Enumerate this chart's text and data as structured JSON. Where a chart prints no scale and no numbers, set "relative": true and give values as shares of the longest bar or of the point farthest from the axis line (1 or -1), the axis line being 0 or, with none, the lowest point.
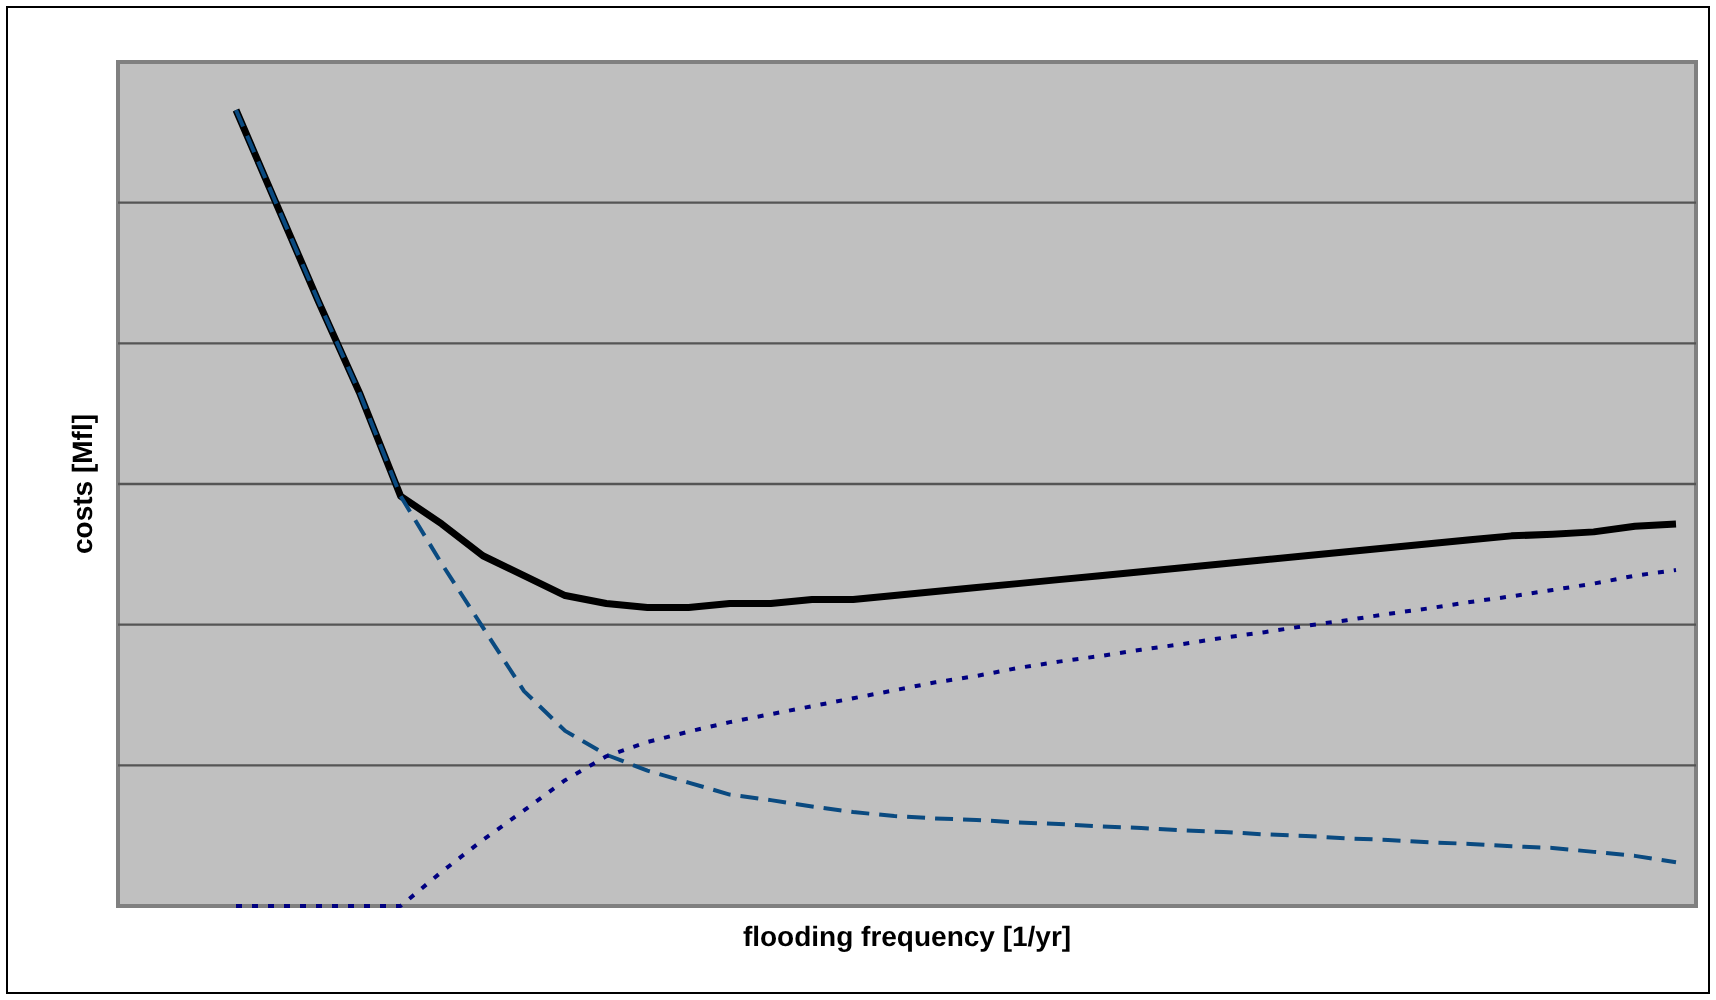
{
  "chart_data": {
    "type": "line",
    "xlabel": "flooding frequency [1/yr]",
    "ylabel": "costs [Mfl]",
    "relative": true,
    "grid": "y",
    "legend": false,
    "categories": [
      null,
      null,
      null,
      null,
      null,
      null,
      null,
      null,
      null,
      null,
      null,
      null,
      null,
      null,
      null,
      null,
      null,
      null,
      null,
      null,
      null,
      null,
      null,
      null,
      null,
      null,
      null,
      null,
      null,
      null,
      null,
      null,
      null,
      null,
      null,
      null
    ],
    "series": [
      {
        "color": "#000000",
        "line_style": "solid",
        "values": [
          1.0,
          0.88,
          0.76,
          0.645,
          0.515,
          0.48,
          0.44,
          0.415,
          0.39,
          0.38,
          0.375,
          0.375,
          0.38,
          0.38,
          0.385,
          0.385,
          0.39,
          0.395,
          0.4,
          0.405,
          0.41,
          0.415,
          0.42,
          0.425,
          0.43,
          0.435,
          0.44,
          0.445,
          0.45,
          0.455,
          0.46,
          0.465,
          0.467,
          0.47,
          0.477,
          0.48
        ]
      },
      {
        "color": "#0a4a80",
        "line_style": "dashed",
        "values": [
          1.0,
          0.88,
          0.76,
          0.645,
          0.515,
          0.43,
          0.35,
          0.27,
          0.22,
          0.19,
          0.17,
          0.155,
          0.14,
          0.133,
          0.125,
          0.118,
          0.113,
          0.11,
          0.108,
          0.105,
          0.103,
          0.1,
          0.098,
          0.095,
          0.093,
          0.09,
          0.088,
          0.085,
          0.083,
          0.08,
          0.078,
          0.075,
          0.073,
          0.068,
          0.063,
          0.055
        ]
      },
      {
        "color": "#000080",
        "line_style": "dotted",
        "values": [
          0,
          0,
          0,
          0,
          0,
          0.043,
          0.083,
          0.12,
          0.158,
          0.188,
          0.206,
          0.219,
          0.231,
          0.241,
          0.251,
          0.261,
          0.271,
          0.281,
          0.289,
          0.299,
          0.307,
          0.314,
          0.322,
          0.329,
          0.337,
          0.344,
          0.352,
          0.359,
          0.367,
          0.374,
          0.382,
          0.389,
          0.397,
          0.405,
          0.415,
          0.422
        ]
      }
    ]
  }
}
